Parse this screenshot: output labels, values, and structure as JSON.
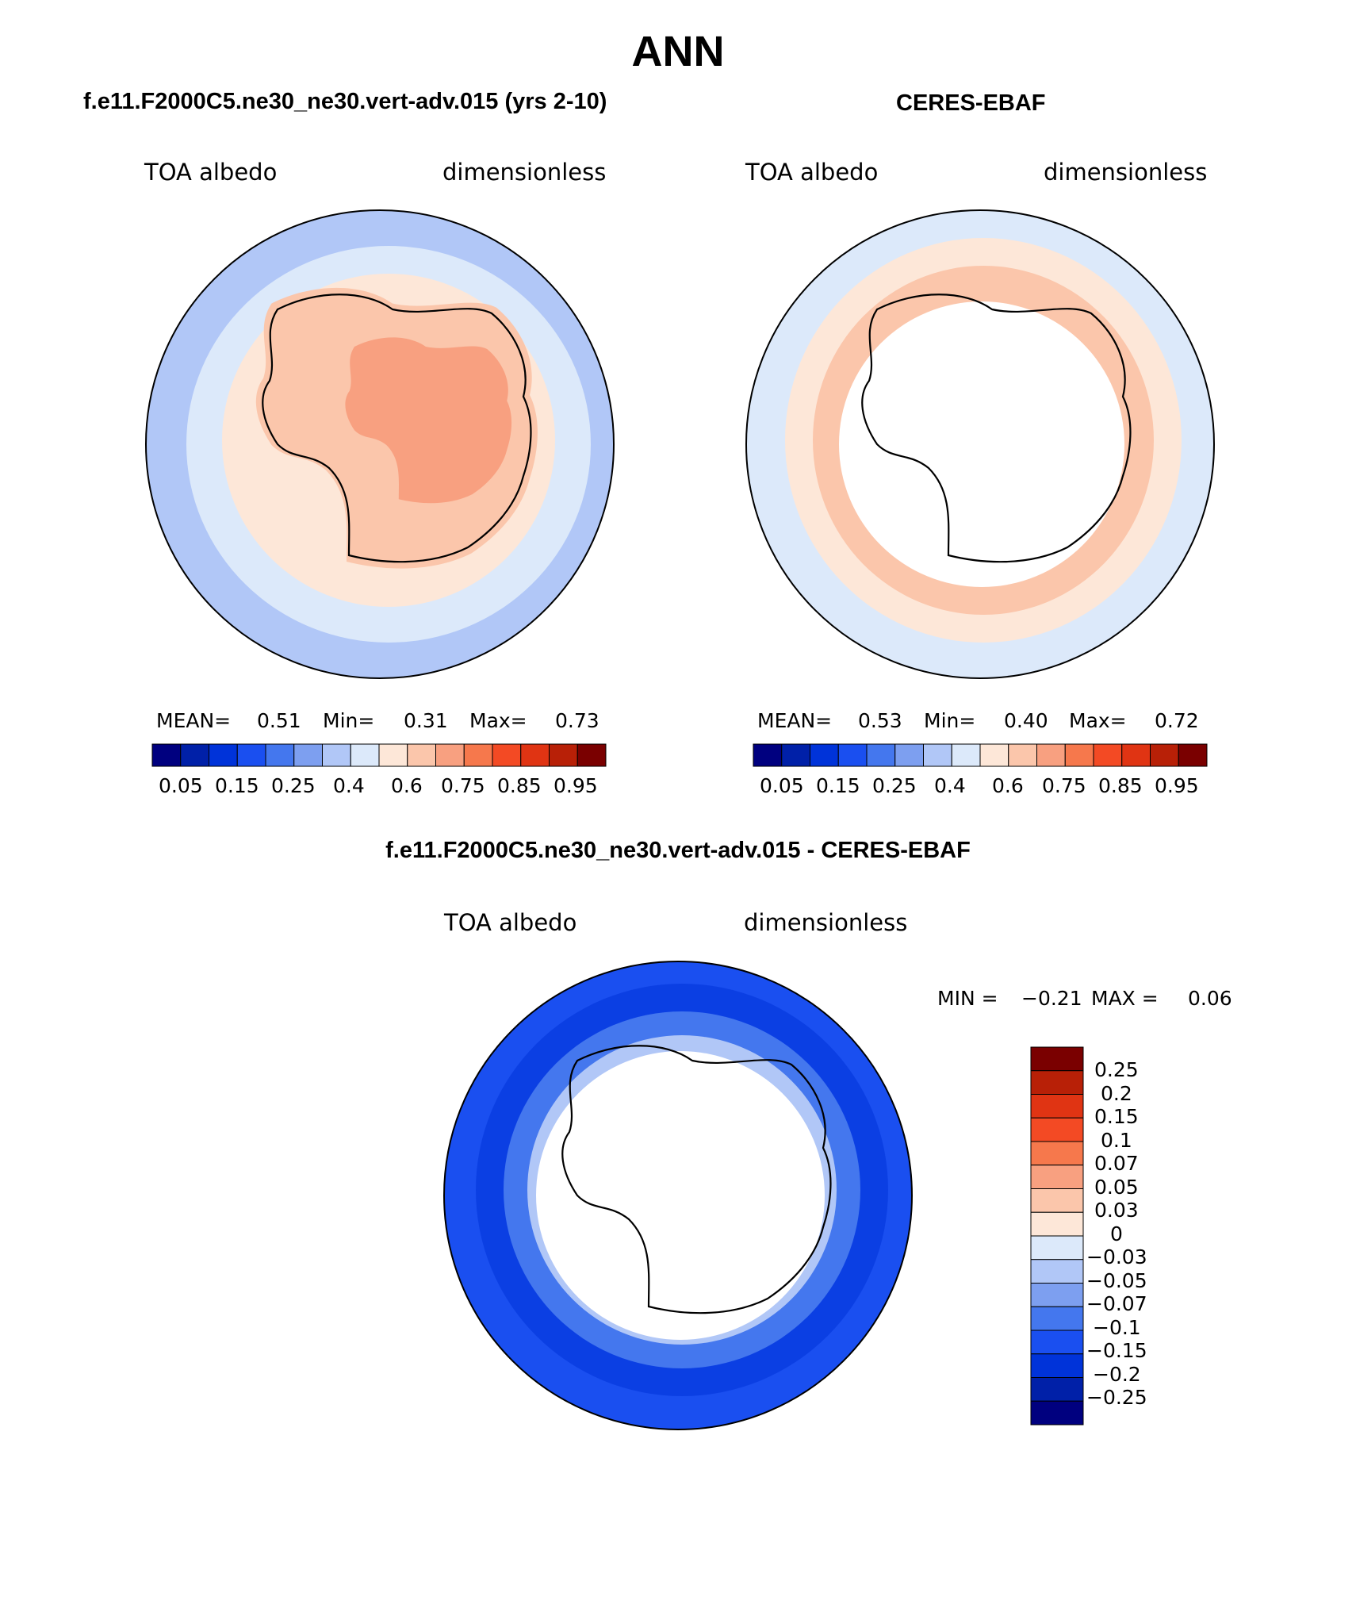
{
  "main_title": "ANN",
  "colors": {
    "abs_levels": [
      "#00007f",
      "#0020a8",
      "#0033d9",
      "#1a4ff0",
      "#4477ee",
      "#7d9ff0",
      "#b1c7f7",
      "#dce9fa",
      "#fde7d8",
      "#fbc6ab",
      "#f8a080",
      "#f6784c",
      "#f34a24",
      "#e03413",
      "#b82007",
      "#7a0000"
    ],
    "diff_levels": [
      "#00007f",
      "#0020a8",
      "#0033d9",
      "#1a4ff0",
      "#4477ee",
      "#7d9ff0",
      "#b1c7f7",
      "#dce9fa",
      "#fde7d8",
      "#fbc6ab",
      "#f8a080",
      "#f6784c",
      "#f34a24",
      "#e03413",
      "#b82007",
      "#7a0000"
    ]
  },
  "chart_data": [
    {
      "type": "heatmap",
      "title": "f.e11.F2000C5.ne30_ne30.vert-adv.015 (yrs 2-10)",
      "left_label": "TOA albedo",
      "right_label": "dimensionless",
      "stats": {
        "mean_label": "MEAN=",
        "mean": "0.51",
        "min_label": "Min=",
        "min": "0.31",
        "max_label": "Max=",
        "max": "0.73"
      },
      "colorbar_ticks": [
        "0.05",
        "0.15",
        "0.25",
        "0.4",
        "0.6",
        "0.75",
        "0.85",
        "0.95"
      ]
    },
    {
      "type": "heatmap",
      "title": "CERES-EBAF",
      "left_label": "TOA albedo",
      "right_label": "dimensionless",
      "stats": {
        "mean_label": "MEAN=",
        "mean": "0.53",
        "min_label": "Min=",
        "min": "0.40",
        "max_label": "Max=",
        "max": "0.72"
      },
      "colorbar_ticks": [
        "0.05",
        "0.15",
        "0.25",
        "0.4",
        "0.6",
        "0.75",
        "0.85",
        "0.95"
      ]
    },
    {
      "type": "heatmap",
      "title": "f.e11.F2000C5.ne30_ne30.vert-adv.015 - CERES-EBAF",
      "left_label": "TOA albedo",
      "right_label": "dimensionless",
      "stats": {
        "min_label": "MIN =",
        "min": "−0.21",
        "max_label": "MAX =",
        "max": "0.06"
      },
      "colorbar_ticks": [
        "0.25",
        "0.2",
        "0.15",
        "0.1",
        "0.07",
        "0.05",
        "0.03",
        "0",
        "−0.03",
        "−0.05",
        "−0.07",
        "−0.1",
        "−0.15",
        "−0.2",
        "−0.25"
      ]
    }
  ]
}
